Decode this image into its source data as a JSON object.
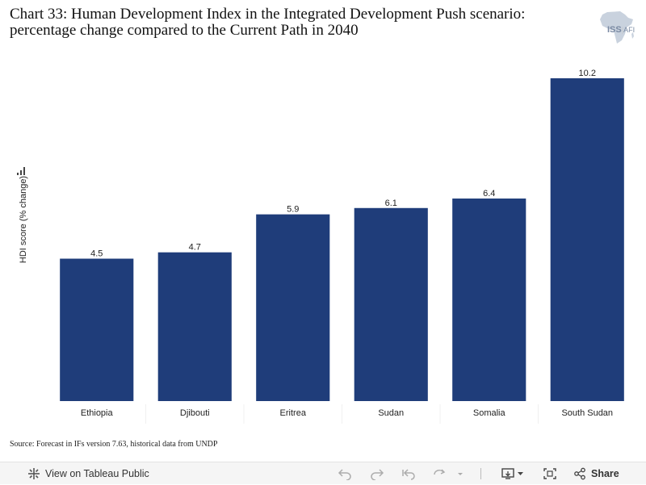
{
  "title": "Chart 33: Human Development Index in the Integrated Development Push scenario: percentage change compared to the Current Path in 2040",
  "logo": {
    "name": "ISS",
    "suffix": "AFI"
  },
  "source": "Source: Forecast in IFs version 7.63, historical data from UNDP",
  "chart_data": {
    "type": "bar",
    "title": "Chart 33: Human Development Index in the Integrated Development Push scenario: percentage change compared to the Current Path in 2040",
    "xlabel": "",
    "ylabel": "HDI score (% change)",
    "categories": [
      "Ethiopia",
      "Djibouti",
      "Eritrea",
      "Sudan",
      "Somalia",
      "South Sudan"
    ],
    "values": [
      4.5,
      4.7,
      5.9,
      6.1,
      6.4,
      10.2
    ],
    "value_labels": [
      "4.5",
      "4.7",
      "5.9",
      "6.1",
      "6.4",
      "10.2"
    ],
    "ylim": [
      0,
      10.2
    ],
    "grid": false,
    "bar_color": "#1f3d7a"
  },
  "toolbar": {
    "view_label": "View on Tableau Public",
    "share_label": "Share"
  },
  "icons": [
    "tableau-icon",
    "undo-icon",
    "redo-icon",
    "revert-icon",
    "refresh-icon",
    "pause-icon",
    "download-icon",
    "fullscreen-icon",
    "share-icon",
    "sort-icon"
  ]
}
